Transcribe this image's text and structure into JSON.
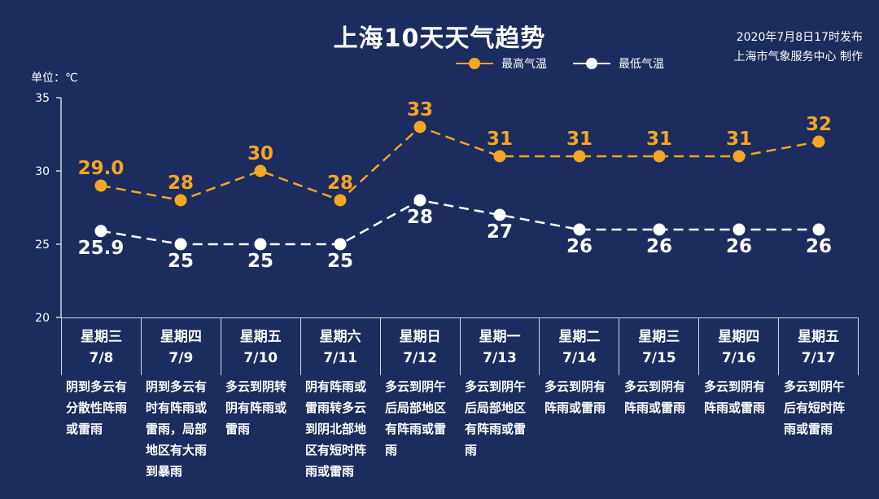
{
  "header": {
    "title": "上海10天天气趋势",
    "publish_line1": "2020年7月8日17时发布",
    "publish_line2": "上海市气象服务中心 制作"
  },
  "unit_label": "单位：℃",
  "colors": {
    "background": "#1c2c5e",
    "high": "#f5a623",
    "low": "#ffffff",
    "axis": "#cfd6e6"
  },
  "chart_data": {
    "type": "line",
    "title": "上海10天天气趋势",
    "ylabel": "单位：℃",
    "ylim": [
      20,
      35
    ],
    "yticks": [
      20,
      25,
      30,
      35
    ],
    "grid": false,
    "legend_position": "top-right",
    "categories": [
      "7/8",
      "7/9",
      "7/10",
      "7/11",
      "7/12",
      "7/13",
      "7/14",
      "7/15",
      "7/16",
      "7/17"
    ],
    "series": [
      {
        "name": "最高气温",
        "color": "#f5a623",
        "style": "dashed",
        "values": [
          29.0,
          28,
          30,
          28,
          33,
          31,
          31,
          31,
          31,
          32
        ],
        "labels": [
          "29.0",
          "28",
          "30",
          "28",
          "33",
          "31",
          "31",
          "31",
          "31",
          "32"
        ]
      },
      {
        "name": "最低气温",
        "color": "#ffffff",
        "style": "dashed",
        "values": [
          25.9,
          25,
          25,
          25,
          28,
          27,
          26,
          26,
          26,
          26
        ],
        "labels": [
          "25.9",
          "25",
          "25",
          "25",
          "28",
          "27",
          "26",
          "26",
          "26",
          "26"
        ]
      }
    ]
  },
  "days": [
    {
      "weekday": "星期三",
      "date": "7/8",
      "desc": "阴到多云有分散性阵雨或雷雨"
    },
    {
      "weekday": "星期四",
      "date": "7/9",
      "desc": "阴到多云有时有阵雨或雷雨，局部地区有大雨到暴雨"
    },
    {
      "weekday": "星期五",
      "date": "7/10",
      "desc": "多云到阴转阴有阵雨或雷雨"
    },
    {
      "weekday": "星期六",
      "date": "7/11",
      "desc": "阴有阵雨或雷雨转多云到阴北部地区有短时阵雨或雷雨"
    },
    {
      "weekday": "星期日",
      "date": "7/12",
      "desc": "多云到阴午后局部地区有阵雨或雷雨"
    },
    {
      "weekday": "星期一",
      "date": "7/13",
      "desc": "多云到阴午后局部地区有阵雨或雷雨"
    },
    {
      "weekday": "星期二",
      "date": "7/14",
      "desc": "多云到阴有阵雨或雷雨"
    },
    {
      "weekday": "星期三",
      "date": "7/15",
      "desc": "多云到阴有阵雨或雷雨"
    },
    {
      "weekday": "星期四",
      "date": "7/16",
      "desc": "多云到阴有阵雨或雷雨"
    },
    {
      "weekday": "星期五",
      "date": "7/17",
      "desc": "多云到阴午后有短时阵雨或雷雨"
    }
  ]
}
